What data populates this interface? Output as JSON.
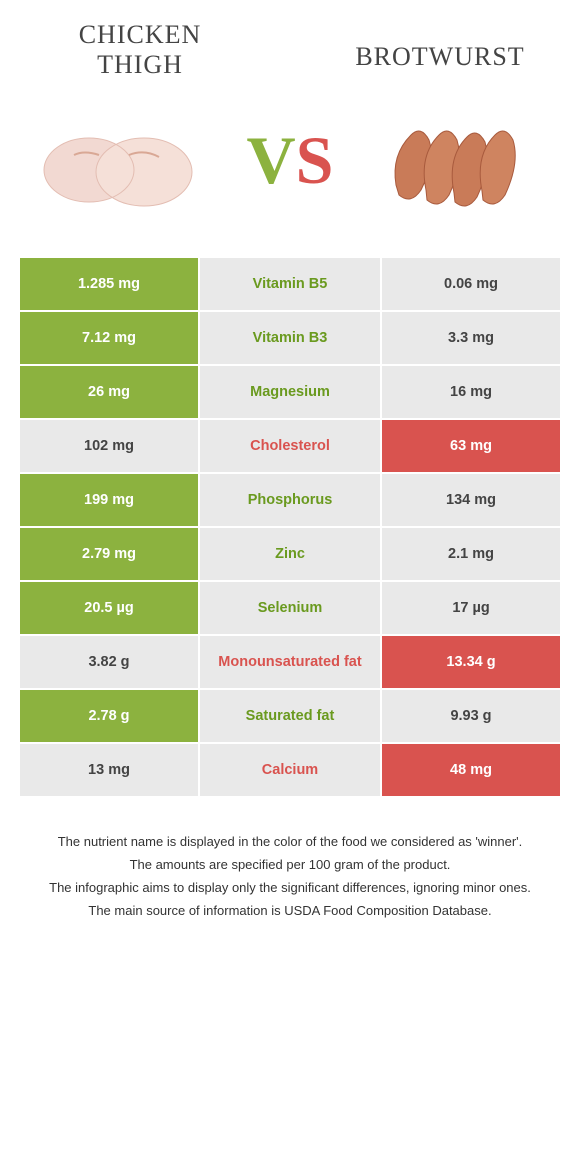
{
  "titles": {
    "left": "Chicken thigh",
    "right": "Brotwurst"
  },
  "vs": {
    "v": "V",
    "s": "S"
  },
  "colors": {
    "green": "#8cb23f",
    "red": "#d9534f",
    "grey_bg": "#e9e9e9",
    "nutrient_green": "#6a9a1f",
    "nutrient_red": "#d9534f"
  },
  "rows": [
    {
      "nutrient": "Vitamin B5",
      "left": "1.285 mg",
      "right": "0.06 mg",
      "winner": "left"
    },
    {
      "nutrient": "Vitamin B3",
      "left": "7.12 mg",
      "right": "3.3 mg",
      "winner": "left"
    },
    {
      "nutrient": "Magnesium",
      "left": "26 mg",
      "right": "16 mg",
      "winner": "left"
    },
    {
      "nutrient": "Cholesterol",
      "left": "102 mg",
      "right": "63 mg",
      "winner": "right"
    },
    {
      "nutrient": "Phosphorus",
      "left": "199 mg",
      "right": "134 mg",
      "winner": "left"
    },
    {
      "nutrient": "Zinc",
      "left": "2.79 mg",
      "right": "2.1 mg",
      "winner": "left"
    },
    {
      "nutrient": "Selenium",
      "left": "20.5 µg",
      "right": "17 µg",
      "winner": "left"
    },
    {
      "nutrient": "Monounsaturated fat",
      "left": "3.82 g",
      "right": "13.34 g",
      "winner": "right"
    },
    {
      "nutrient": "Saturated fat",
      "left": "2.78 g",
      "right": "9.93 g",
      "winner": "left"
    },
    {
      "nutrient": "Calcium",
      "left": "13 mg",
      "right": "48 mg",
      "winner": "right"
    }
  ],
  "footer": [
    "The nutrient name is displayed in the color of the food we considered as 'winner'.",
    "The amounts are specified per 100 gram of the product.",
    "The infographic aims to display only the significant differences, ignoring minor ones.",
    "The main source of information is USDA Food Composition Database."
  ],
  "images": {
    "left_alt": "chicken-thigh-image",
    "right_alt": "brotwurst-image"
  }
}
